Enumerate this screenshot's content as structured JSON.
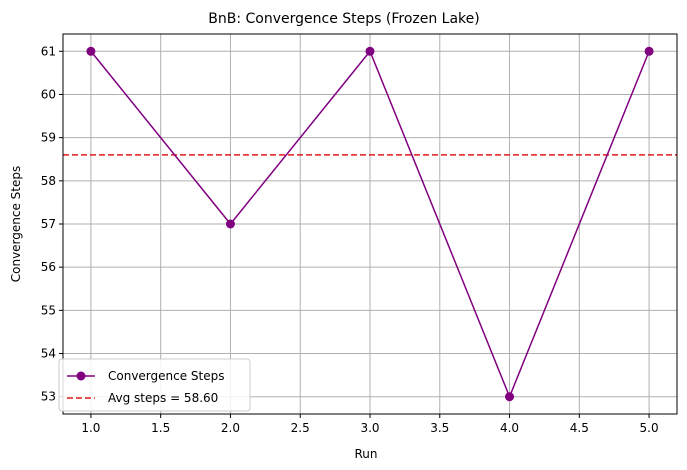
{
  "chart_data": {
    "type": "line",
    "title": "BnB: Convergence Steps (Frozen Lake)",
    "xlabel": "Run",
    "ylabel": "Convergence Steps",
    "xlim": [
      0.8,
      5.2
    ],
    "ylim": [
      52.6,
      61.4
    ],
    "xticks": [
      1.0,
      1.5,
      2.0,
      2.5,
      3.0,
      3.5,
      4.0,
      4.5,
      5.0
    ],
    "xtick_labels": [
      "1.0",
      "1.5",
      "2.0",
      "2.5",
      "3.0",
      "3.5",
      "4.0",
      "4.5",
      "5.0"
    ],
    "yticks": [
      53,
      54,
      55,
      56,
      57,
      58,
      59,
      60,
      61
    ],
    "ytick_labels": [
      "53",
      "54",
      "55",
      "56",
      "57",
      "58",
      "59",
      "60",
      "61"
    ],
    "grid": true,
    "legend_position": "lower-left",
    "series": [
      {
        "name": "Convergence Steps",
        "x": [
          1,
          2,
          3,
          4,
          5
        ],
        "y": [
          61,
          57,
          61,
          53,
          61
        ],
        "color": "#800080",
        "marker": "circle",
        "style": "solid"
      }
    ],
    "reference_lines": [
      {
        "name": "Avg steps = 58.60",
        "y": 58.6,
        "color": "#e31a1c",
        "style": "dashed"
      }
    ]
  }
}
